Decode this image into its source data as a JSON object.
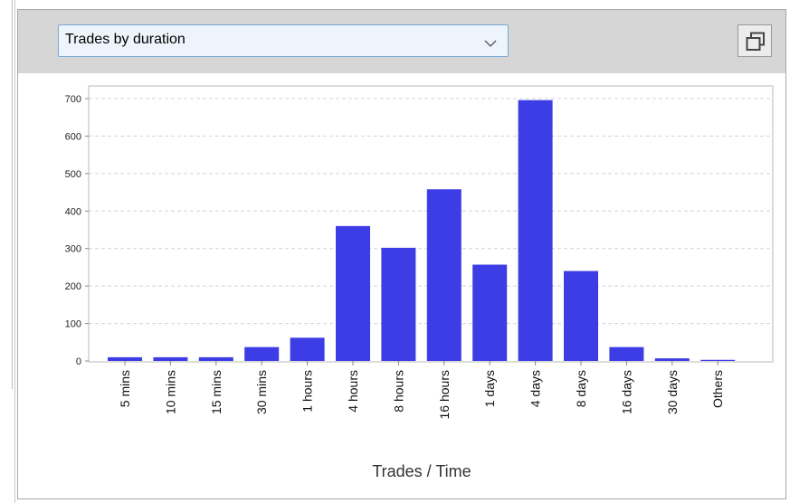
{
  "panel": {
    "dropdown": {
      "selected": "Trades by duration"
    },
    "icons": {
      "dropdown": "chevron-down-icon",
      "popout": "popout-window-icon"
    }
  },
  "chart_data": {
    "type": "bar",
    "categories": [
      "5 mins",
      "10 mins",
      "15 mins",
      "30 mins",
      "1 hours",
      "4 hours",
      "8 hours",
      "16 hours",
      "1 days",
      "4 days",
      "8 days",
      "16 days",
      "30 days",
      "Others"
    ],
    "values": [
      10,
      10,
      10,
      37,
      62,
      360,
      302,
      458,
      257,
      696,
      240,
      37,
      7,
      3
    ],
    "title": "",
    "xlabel": "Trades / Time",
    "ylabel": "",
    "ylim": [
      0,
      700
    ],
    "yticks": [
      0,
      100,
      200,
      300,
      400,
      500,
      600,
      700
    ],
    "grid": true,
    "bar_color": "#3d3de6",
    "grid_color": "#d4d4d4"
  }
}
